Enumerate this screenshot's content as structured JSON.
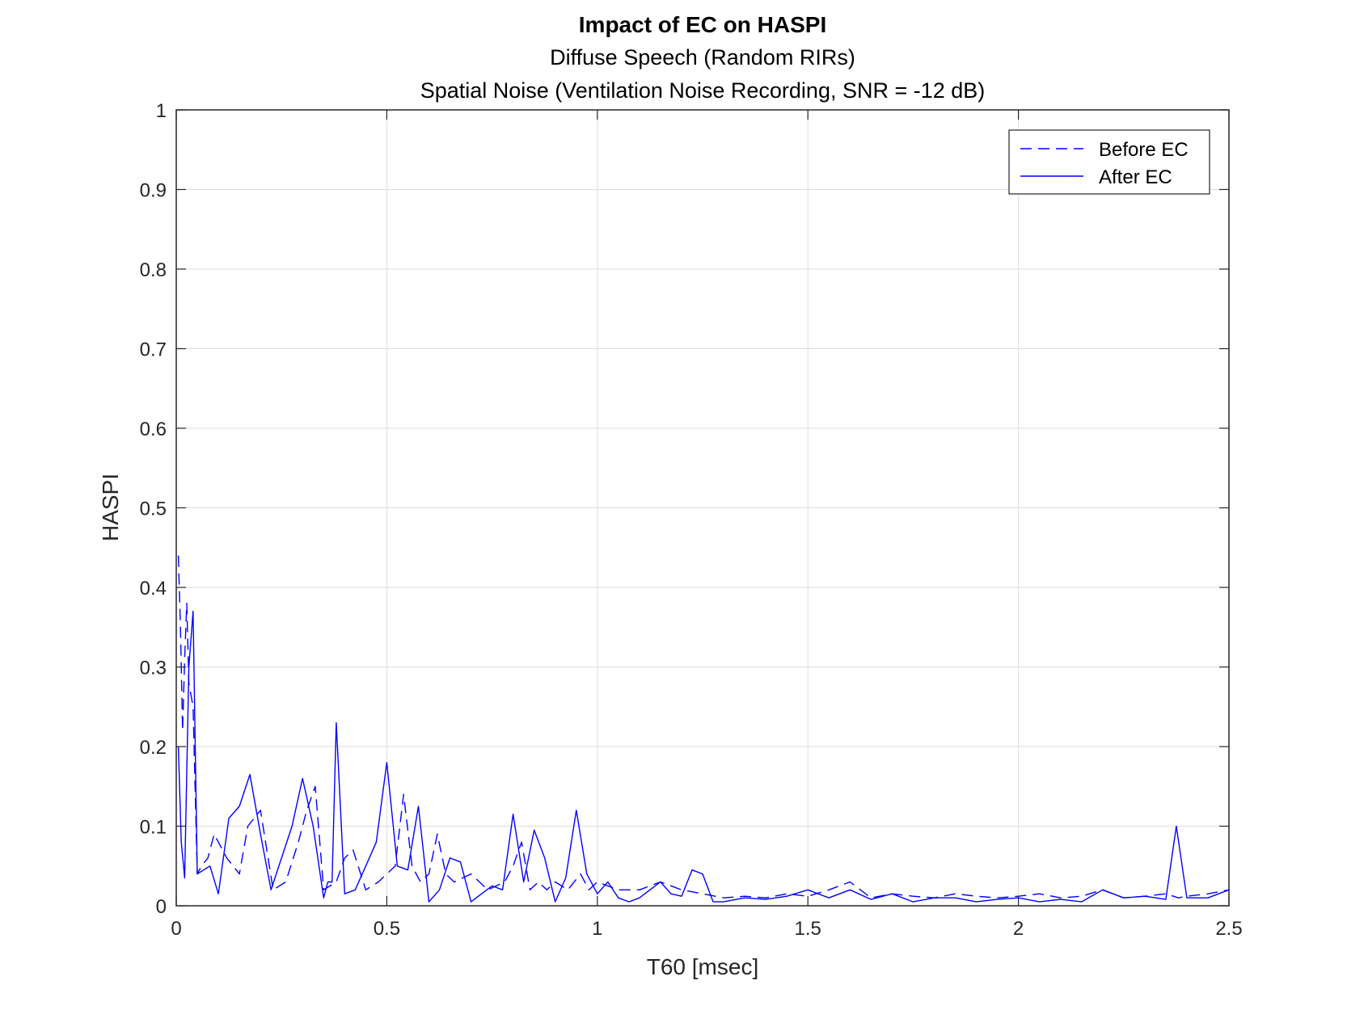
{
  "chart_data": {
    "type": "line",
    "title": "Impact of EC on HASPI",
    "subtitles": [
      "Diffuse Speech (Random RIRs)",
      "Spatial Noise (Ventilation Noise Recording, SNR = -12 dB)"
    ],
    "xlabel": "T60 [msec]",
    "ylabel": "HASPI",
    "xlim": [
      0,
      2.5
    ],
    "ylim": [
      0,
      1
    ],
    "x_ticks": [
      0,
      0.5,
      1,
      1.5,
      2,
      2.5
    ],
    "x_tick_labels": [
      "0",
      "0.5",
      "1",
      "1.5",
      "2",
      "2.5"
    ],
    "y_ticks": [
      0,
      0.1,
      0.2,
      0.3,
      0.4,
      0.5,
      0.6,
      0.7,
      0.8,
      0.9,
      1
    ],
    "y_tick_labels": [
      "0",
      "0.1",
      "0.2",
      "0.3",
      "0.4",
      "0.5",
      "0.6",
      "0.7",
      "0.8",
      "0.9",
      "1"
    ],
    "grid": true,
    "legend_position": "top-right",
    "color": "#0000ff",
    "series": [
      {
        "name": "Before EC",
        "style": "dashed",
        "x": [
          0.005,
          0.01,
          0.015,
          0.02,
          0.025,
          0.03,
          0.04,
          0.05,
          0.06,
          0.075,
          0.09,
          0.1,
          0.12,
          0.15,
          0.17,
          0.2,
          0.23,
          0.26,
          0.29,
          0.31,
          0.33,
          0.35,
          0.38,
          0.4,
          0.42,
          0.45,
          0.48,
          0.5,
          0.52,
          0.54,
          0.56,
          0.58,
          0.6,
          0.62,
          0.64,
          0.66,
          0.7,
          0.74,
          0.78,
          0.8,
          0.82,
          0.84,
          0.86,
          0.88,
          0.9,
          0.93,
          0.96,
          0.98,
          1.0,
          1.05,
          1.1,
          1.15,
          1.2,
          1.25,
          1.3,
          1.35,
          1.4,
          1.45,
          1.5,
          1.55,
          1.6,
          1.65,
          1.7,
          1.75,
          1.8,
          1.85,
          1.9,
          1.95,
          2.0,
          2.05,
          2.1,
          2.15,
          2.2,
          2.25,
          2.3,
          2.35,
          2.38,
          2.4,
          2.45,
          2.5
        ],
        "y": [
          0.44,
          0.35,
          0.22,
          0.31,
          0.38,
          0.28,
          0.25,
          0.04,
          0.05,
          0.06,
          0.09,
          0.08,
          0.06,
          0.04,
          0.1,
          0.12,
          0.02,
          0.03,
          0.08,
          0.12,
          0.15,
          0.02,
          0.03,
          0.06,
          0.07,
          0.02,
          0.03,
          0.04,
          0.05,
          0.14,
          0.05,
          0.03,
          0.04,
          0.09,
          0.04,
          0.03,
          0.04,
          0.02,
          0.03,
          0.05,
          0.08,
          0.02,
          0.03,
          0.02,
          0.03,
          0.02,
          0.04,
          0.02,
          0.03,
          0.02,
          0.02,
          0.03,
          0.02,
          0.015,
          0.01,
          0.012,
          0.01,
          0.015,
          0.012,
          0.02,
          0.03,
          0.01,
          0.015,
          0.012,
          0.01,
          0.015,
          0.012,
          0.01,
          0.012,
          0.015,
          0.01,
          0.012,
          0.02,
          0.01,
          0.012,
          0.015,
          0.01,
          0.012,
          0.015,
          0.02
        ]
      },
      {
        "name": "After EC",
        "style": "solid",
        "x": [
          0.005,
          0.012,
          0.02,
          0.03,
          0.04,
          0.05,
          0.065,
          0.08,
          0.1,
          0.125,
          0.15,
          0.175,
          0.2,
          0.225,
          0.25,
          0.275,
          0.3,
          0.325,
          0.35,
          0.36,
          0.37,
          0.38,
          0.4,
          0.425,
          0.45,
          0.475,
          0.5,
          0.525,
          0.55,
          0.575,
          0.6,
          0.625,
          0.65,
          0.675,
          0.7,
          0.725,
          0.75,
          0.775,
          0.8,
          0.825,
          0.85,
          0.875,
          0.9,
          0.925,
          0.95,
          0.975,
          1.0,
          1.025,
          1.05,
          1.075,
          1.1,
          1.125,
          1.15,
          1.175,
          1.2,
          1.225,
          1.25,
          1.275,
          1.3,
          1.35,
          1.4,
          1.45,
          1.5,
          1.55,
          1.6,
          1.65,
          1.7,
          1.75,
          1.8,
          1.85,
          1.9,
          1.95,
          2.0,
          2.05,
          2.1,
          2.15,
          2.2,
          2.25,
          2.3,
          2.35,
          2.375,
          2.4,
          2.45,
          2.5
        ],
        "y": [
          0.2,
          0.08,
          0.035,
          0.3,
          0.37,
          0.04,
          0.045,
          0.05,
          0.015,
          0.11,
          0.125,
          0.165,
          0.09,
          0.02,
          0.06,
          0.1,
          0.16,
          0.1,
          0.01,
          0.03,
          0.03,
          0.23,
          0.015,
          0.02,
          0.05,
          0.08,
          0.18,
          0.05,
          0.045,
          0.125,
          0.005,
          0.02,
          0.06,
          0.055,
          0.005,
          0.015,
          0.025,
          0.02,
          0.115,
          0.03,
          0.095,
          0.06,
          0.005,
          0.035,
          0.12,
          0.04,
          0.015,
          0.03,
          0.01,
          0.005,
          0.01,
          0.02,
          0.03,
          0.015,
          0.012,
          0.045,
          0.04,
          0.005,
          0.005,
          0.01,
          0.008,
          0.012,
          0.02,
          0.01,
          0.02,
          0.008,
          0.015,
          0.005,
          0.01,
          0.01,
          0.005,
          0.008,
          0.01,
          0.005,
          0.008,
          0.005,
          0.02,
          0.01,
          0.012,
          0.008,
          0.1,
          0.01,
          0.01,
          0.02
        ]
      }
    ]
  }
}
